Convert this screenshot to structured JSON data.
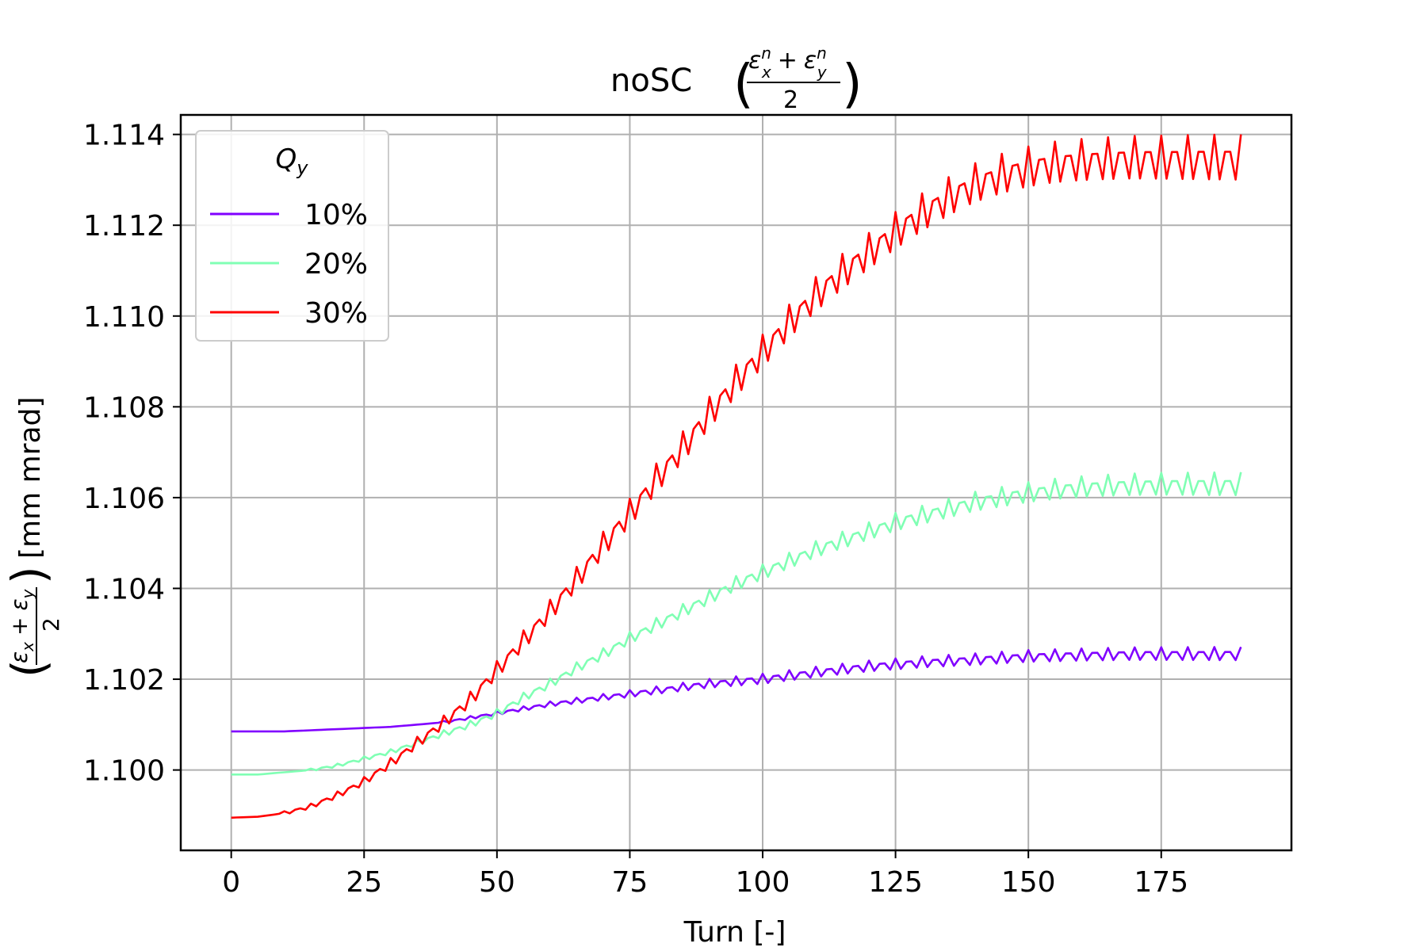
{
  "chart_data": {
    "type": "line",
    "title": "noSC",
    "title_math": "(ε_x^n + ε_y^n) / 2",
    "xlabel": "Turn [-]",
    "ylabel": "[mm mrad]",
    "ylabel_math": "(ε_x + ε_y) / 2",
    "xlim": [
      -9.5,
      199.5
    ],
    "ylim": [
      1.09823,
      1.11443
    ],
    "xticks": [
      0,
      25,
      50,
      75,
      100,
      125,
      150,
      175
    ],
    "yticks": [
      1.1,
      1.102,
      1.104,
      1.106,
      1.108,
      1.11,
      1.112,
      1.114
    ],
    "grid": true,
    "legend": {
      "title": "Q_y",
      "placement": "top-left"
    },
    "series": [
      {
        "name": "10%",
        "color": "#8000ff",
        "points": [
          [
            0,
            1.10085
          ],
          [
            10,
            1.10085
          ],
          [
            20,
            1.1009
          ],
          [
            30,
            1.10095
          ],
          [
            40,
            1.10105
          ],
          [
            50,
            1.10125
          ],
          [
            60,
            1.10145
          ],
          [
            70,
            1.1016
          ],
          [
            80,
            1.10175
          ],
          [
            90,
            1.1019
          ],
          [
            100,
            1.102
          ],
          [
            110,
            1.10215
          ],
          [
            120,
            1.10228
          ],
          [
            130,
            1.10237
          ],
          [
            140,
            1.10243
          ],
          [
            150,
            1.1025
          ],
          [
            160,
            1.10253
          ],
          [
            170,
            1.10255
          ],
          [
            180,
            1.10255
          ],
          [
            190,
            1.10255
          ]
        ],
        "osc": {
          "start": 40,
          "period": 2.5,
          "amp": [
            [
              40,
              3e-05
            ],
            [
              100,
              0.00012
            ],
            [
              190,
              0.00016
            ]
          ]
        }
      },
      {
        "name": "20%",
        "color": "#80ffb4",
        "points": [
          [
            0,
            1.0999
          ],
          [
            5,
            1.0999
          ],
          [
            10,
            1.09995
          ],
          [
            15,
            1.1
          ],
          [
            20,
            1.1001
          ],
          [
            25,
            1.10025
          ],
          [
            30,
            1.1004
          ],
          [
            35,
            1.1006
          ],
          [
            40,
            1.1008
          ],
          [
            45,
            1.101
          ],
          [
            50,
            1.10125
          ],
          [
            55,
            1.1016
          ],
          [
            60,
            1.1019
          ],
          [
            65,
            1.10225
          ],
          [
            70,
            1.10255
          ],
          [
            75,
            1.1029
          ],
          [
            80,
            1.1032
          ],
          [
            85,
            1.1035
          ],
          [
            90,
            1.1038
          ],
          [
            95,
            1.1041
          ],
          [
            100,
            1.10435
          ],
          [
            105,
            1.1046
          ],
          [
            110,
            1.10485
          ],
          [
            115,
            1.10505
          ],
          [
            120,
            1.10525
          ],
          [
            125,
            1.10545
          ],
          [
            130,
            1.1056
          ],
          [
            135,
            1.10575
          ],
          [
            140,
            1.1059
          ],
          [
            145,
            1.106
          ],
          [
            150,
            1.1061
          ],
          [
            155,
            1.10617
          ],
          [
            160,
            1.10622
          ],
          [
            165,
            1.10625
          ],
          [
            170,
            1.10627
          ],
          [
            175,
            1.10628
          ],
          [
            180,
            1.10628
          ],
          [
            185,
            1.10628
          ],
          [
            190,
            1.10628
          ]
        ],
        "osc": {
          "start": 15,
          "period": 2.5,
          "amp": [
            [
              15,
              3e-05
            ],
            [
              80,
              0.00015
            ],
            [
              130,
              0.00022
            ],
            [
              190,
              0.00028
            ]
          ]
        }
      },
      {
        "name": "30%",
        "color": "#ff0000",
        "points": [
          [
            0,
            1.09895
          ],
          [
            5,
            1.09897
          ],
          [
            10,
            1.09905
          ],
          [
            15,
            1.0992
          ],
          [
            20,
            1.09945
          ],
          [
            25,
            1.09975
          ],
          [
            30,
            1.10015
          ],
          [
            35,
            1.1006
          ],
          [
            40,
            1.10105
          ],
          [
            45,
            1.10155
          ],
          [
            50,
            1.1022
          ],
          [
            55,
            1.10285
          ],
          [
            60,
            1.1035
          ],
          [
            65,
            1.1042
          ],
          [
            70,
            1.10495
          ],
          [
            75,
            1.10565
          ],
          [
            80,
            1.1064
          ],
          [
            85,
            1.1071
          ],
          [
            90,
            1.10785
          ],
          [
            95,
            1.10855
          ],
          [
            100,
            1.1092
          ],
          [
            105,
            1.10985
          ],
          [
            110,
            1.11045
          ],
          [
            115,
            1.11095
          ],
          [
            120,
            1.1114
          ],
          [
            125,
            1.11185
          ],
          [
            130,
            1.11225
          ],
          [
            135,
            1.1126
          ],
          [
            140,
            1.1129
          ],
          [
            145,
            1.1131
          ],
          [
            150,
            1.11325
          ],
          [
            155,
            1.11335
          ],
          [
            160,
            1.1134
          ],
          [
            165,
            1.11343
          ],
          [
            170,
            1.11345
          ],
          [
            175,
            1.11345
          ],
          [
            180,
            1.11345
          ],
          [
            185,
            1.11345
          ],
          [
            190,
            1.11345
          ]
        ],
        "osc": {
          "start": 10,
          "period": 2.5,
          "amp": [
            [
              10,
              4e-05
            ],
            [
              40,
              0.00015
            ],
            [
              80,
              0.00035
            ],
            [
              130,
              0.00045
            ],
            [
              190,
              0.00055
            ]
          ]
        }
      }
    ]
  }
}
